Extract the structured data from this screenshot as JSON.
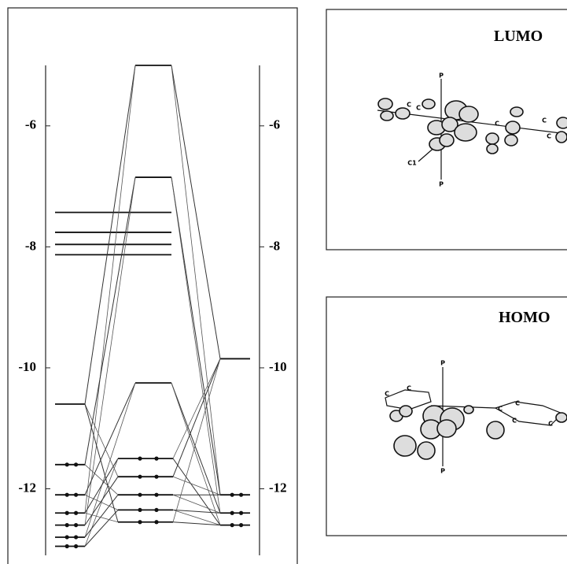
{
  "energy_diagram": {
    "ylim": [
      -13.1,
      -5.0
    ],
    "yticks": [
      -6,
      -8,
      -10,
      -12
    ],
    "columns": [
      {
        "levels": [
          -7.43,
          -7.76,
          -7.96,
          -8.13,
          -10.6,
          -11.6,
          -12.1,
          -12.4,
          -12.6,
          -12.8,
          -12.95
        ]
      },
      {
        "levels": [
          -5.0,
          -6.85,
          -10.25,
          -11.5,
          -11.8,
          -12.1,
          -12.35,
          -12.55
        ]
      },
      {
        "levels": [
          -9.85,
          -12.1,
          -12.4,
          -12.6
        ]
      }
    ]
  },
  "lumo": {
    "title": "LUMO",
    "atoms": [
      "P",
      "P",
      "C1",
      "C",
      "C",
      "C",
      "C",
      "C"
    ]
  },
  "homo": {
    "title": "HOMO",
    "atoms": [
      "P",
      "P",
      "C",
      "C",
      "C",
      "C",
      "C",
      "C"
    ]
  }
}
